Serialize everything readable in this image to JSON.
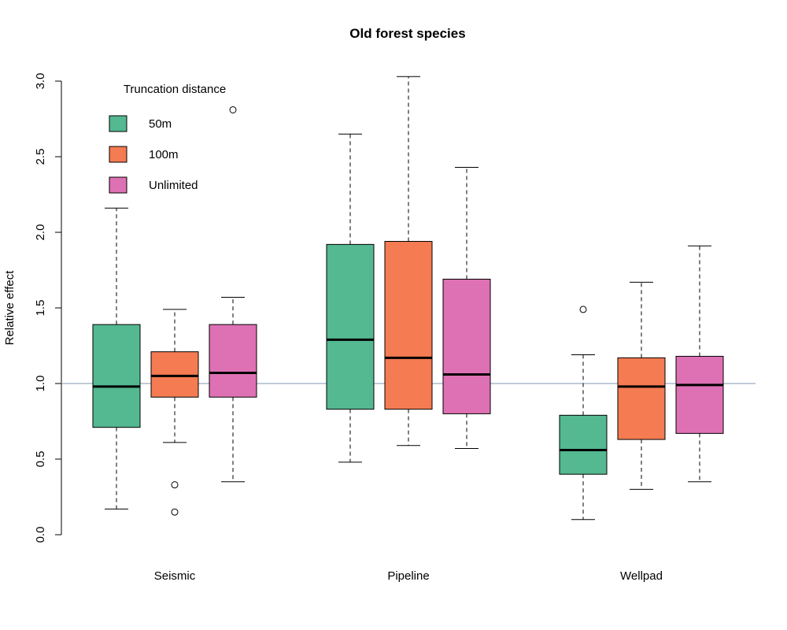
{
  "chart_data": {
    "type": "boxplot",
    "title": "Old forest species",
    "xlabel": "",
    "ylabel": "Relative effect",
    "ylim": [
      0,
      3.0
    ],
    "yticks": [
      "0.0",
      "0.5",
      "1.0",
      "1.5",
      "2.0",
      "2.5",
      "3.0"
    ],
    "reference_line": 1.0,
    "reference_color": "#7f97b2",
    "categories": [
      "Seismic",
      "Pipeline",
      "Wellpad"
    ],
    "legend": {
      "title": "Truncation distance",
      "position": "top-left",
      "entries": [
        "50m",
        "100m",
        "Unlimited"
      ]
    },
    "series": [
      {
        "name": "50m",
        "color": "#54b890",
        "boxes": [
          {
            "lower_whisker": 0.17,
            "q1": 0.71,
            "median": 0.98,
            "q3": 1.39,
            "upper_whisker": 2.16,
            "outliers": []
          },
          {
            "lower_whisker": 0.48,
            "q1": 0.83,
            "median": 1.29,
            "q3": 1.92,
            "upper_whisker": 2.65,
            "outliers": []
          },
          {
            "lower_whisker": 0.1,
            "q1": 0.4,
            "median": 0.56,
            "q3": 0.79,
            "upper_whisker": 1.19,
            "outliers": [
              1.49
            ]
          }
        ]
      },
      {
        "name": "100m",
        "color": "#f47b52",
        "boxes": [
          {
            "lower_whisker": 0.61,
            "q1": 0.91,
            "median": 1.05,
            "q3": 1.21,
            "upper_whisker": 1.49,
            "outliers": [
              0.33,
              0.15
            ]
          },
          {
            "lower_whisker": 0.59,
            "q1": 0.83,
            "median": 1.17,
            "q3": 1.94,
            "upper_whisker": 3.03,
            "outliers": []
          },
          {
            "lower_whisker": 0.3,
            "q1": 0.63,
            "median": 0.98,
            "q3": 1.17,
            "upper_whisker": 1.67,
            "outliers": []
          }
        ]
      },
      {
        "name": "Unlimited",
        "color": "#de71b4",
        "boxes": [
          {
            "lower_whisker": 0.35,
            "q1": 0.91,
            "median": 1.07,
            "q3": 1.39,
            "upper_whisker": 1.57,
            "outliers": [
              2.81
            ]
          },
          {
            "lower_whisker": 0.57,
            "q1": 0.8,
            "median": 1.06,
            "q3": 1.69,
            "upper_whisker": 2.43,
            "outliers": []
          },
          {
            "lower_whisker": 0.35,
            "q1": 0.67,
            "median": 0.99,
            "q3": 1.18,
            "upper_whisker": 1.91,
            "outliers": []
          }
        ]
      }
    ]
  }
}
